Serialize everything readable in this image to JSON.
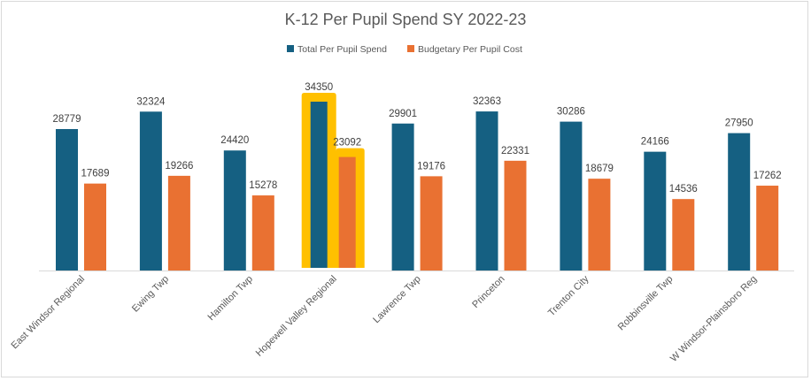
{
  "chart_data": {
    "type": "bar",
    "title": "K-12 Per Pupil Spend SY 2022-23",
    "xlabel": "",
    "ylabel": "",
    "ylim": [
      0,
      40000
    ],
    "grid": false,
    "legend_position": "top",
    "categories": [
      "East Windsor Regional",
      "Ewing Twp",
      "Hamilton Twp",
      "Hopewell Valley Regional",
      "Lawrence Twp",
      "Princeton",
      "Trenton City",
      "Robbinsville Twp",
      "W Windsor-Plainsboro Reg"
    ],
    "series": [
      {
        "name": "Total Per Pupil Spend",
        "color": "#156082",
        "values": [
          28779,
          32324,
          24420,
          34350,
          29901,
          32363,
          30286,
          24166,
          27950
        ]
      },
      {
        "name": "Budgetary Per Pupil Cost",
        "color": "#E97132",
        "values": [
          17689,
          19266,
          15278,
          23092,
          19176,
          22331,
          18679,
          14536,
          17262
        ]
      }
    ],
    "highlighted_category": "Hopewell Valley Regional",
    "highlight_color": "#FFC000"
  }
}
